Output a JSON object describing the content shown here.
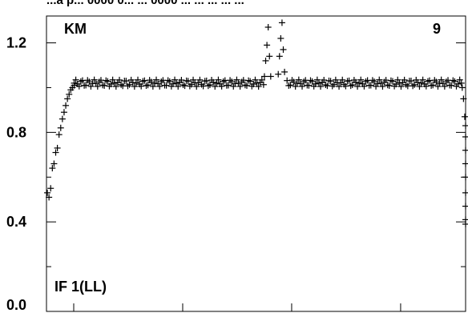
{
  "header": {
    "text": "...a p... 0000 0...     ...    0000   ... ... ... ... ..."
  },
  "chart_data": {
    "type": "scatter",
    "marker": "plus",
    "color": "#000000",
    "panel_labels": {
      "top_left": "KM",
      "top_right": "9",
      "bottom_left": "IF 1(LL)"
    },
    "ylim": [
      0.0,
      1.32
    ],
    "yticks": [
      {
        "value": 0.4,
        "label": "0.4"
      },
      {
        "value": 0.8,
        "label": "0.8"
      },
      {
        "value": 1.2,
        "label": "1.2"
      }
    ],
    "ytick_bottom_label": "0.0",
    "y_minor_ticks": [
      0.2,
      0.6,
      1.0
    ],
    "xlim": [
      0,
      100
    ],
    "x_minor_ticks": [
      6.5,
      32.5,
      58.5,
      84.5
    ],
    "grid": false,
    "series": [
      {
        "points": [
          {
            "x": 0.2,
            "y": 0.53
          },
          {
            "x": 0.6,
            "y": 0.51
          },
          {
            "x": 1.0,
            "y": 0.55
          },
          {
            "x": 1.4,
            "y": 0.64
          },
          {
            "x": 1.8,
            "y": 0.66
          },
          {
            "x": 2.2,
            "y": 0.71
          },
          {
            "x": 2.6,
            "y": 0.73
          },
          {
            "x": 3.0,
            "y": 0.79
          },
          {
            "x": 3.4,
            "y": 0.82
          },
          {
            "x": 3.8,
            "y": 0.86
          },
          {
            "x": 4.2,
            "y": 0.89
          },
          {
            "x": 4.6,
            "y": 0.92
          },
          {
            "x": 5.0,
            "y": 0.95
          },
          {
            "x": 5.4,
            "y": 0.97
          },
          {
            "x": 5.8,
            "y": 0.99
          },
          {
            "x": 6.2,
            "y": 1.0
          },
          {
            "x": 6.6,
            "y": 1.01
          },
          {
            "x": 52.0,
            "y": 1.05
          },
          {
            "x": 52.3,
            "y": 1.12
          },
          {
            "x": 52.6,
            "y": 1.19
          },
          {
            "x": 52.9,
            "y": 1.27
          },
          {
            "x": 53.2,
            "y": 1.14
          },
          {
            "x": 53.5,
            "y": 1.05
          },
          {
            "x": 55.3,
            "y": 1.06
          },
          {
            "x": 55.6,
            "y": 1.14
          },
          {
            "x": 55.9,
            "y": 1.22
          },
          {
            "x": 56.2,
            "y": 1.29
          },
          {
            "x": 56.5,
            "y": 1.17
          },
          {
            "x": 56.8,
            "y": 1.07
          },
          {
            "x": 99.2,
            "y": 1.0
          },
          {
            "x": 99.5,
            "y": 0.95
          },
          {
            "x": 99.8,
            "y": 0.87
          },
          {
            "x": 100.0,
            "y": 0.83
          },
          {
            "x": 100.0,
            "y": 0.78
          },
          {
            "x": 100.0,
            "y": 0.72
          },
          {
            "x": 100.0,
            "y": 0.66
          },
          {
            "x": 100.0,
            "y": 0.6
          },
          {
            "x": 100.0,
            "y": 0.53
          },
          {
            "x": 100.0,
            "y": 0.47
          },
          {
            "x": 100.0,
            "y": 0.41
          },
          {
            "x": 100.0,
            "y": 0.39
          }
        ],
        "plateau": {
          "x_start": 6.6,
          "x_end": 99.2,
          "step": 0.4,
          "y": 1.02,
          "jitter": 0.015
        }
      }
    ]
  }
}
